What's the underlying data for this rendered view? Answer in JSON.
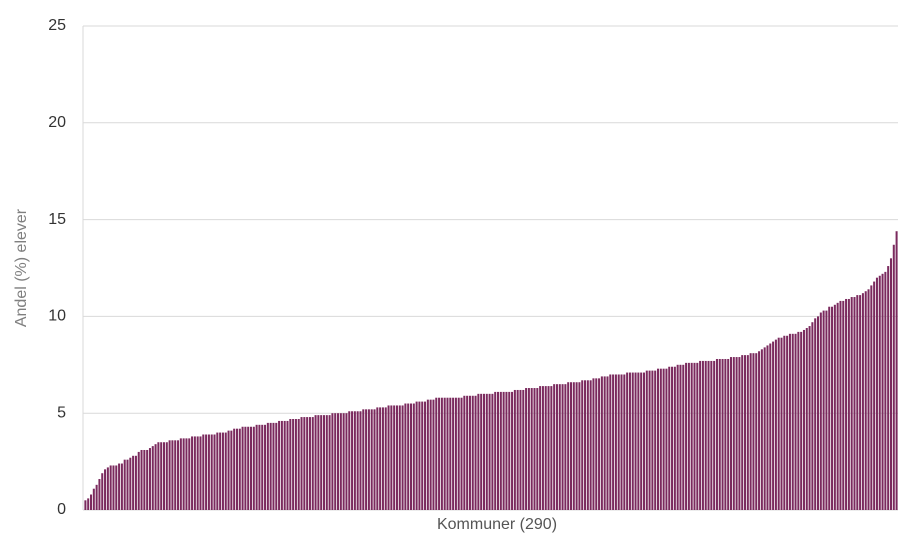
{
  "chart_data": {
    "type": "bar",
    "xlabel": "Kommuner (290)",
    "ylabel": "Andel (%) elever",
    "color": "#7b2a5e",
    "grid": true,
    "ylim": [
      0,
      25
    ],
    "yticks": [
      0,
      5,
      10,
      15,
      20,
      25
    ],
    "categories": [
      null,
      null,
      null,
      null,
      null,
      null,
      null,
      null,
      null,
      null,
      null,
      null,
      null,
      null,
      null,
      null,
      null,
      null,
      null,
      null,
      null,
      null,
      null,
      null,
      null,
      null,
      null,
      null,
      null,
      null,
      null,
      null,
      null,
      null,
      null,
      null,
      null,
      null,
      null,
      null,
      null,
      null,
      null,
      null,
      null,
      null,
      null,
      null,
      null,
      null,
      null,
      null,
      null,
      null,
      null,
      null,
      null,
      null,
      null,
      null,
      null,
      null,
      null,
      null,
      null,
      null,
      null,
      null,
      null,
      null,
      null,
      null,
      null,
      null,
      null,
      null,
      null,
      null,
      null,
      null,
      null,
      null,
      null,
      null,
      null,
      null,
      null,
      null,
      null,
      null,
      null,
      null,
      null,
      null,
      null,
      null,
      null,
      null,
      null,
      null,
      null,
      null,
      null,
      null,
      null,
      null,
      null,
      null,
      null,
      null,
      null,
      null,
      null,
      null,
      null,
      null,
      null,
      null,
      null,
      null,
      null,
      null,
      null,
      null,
      null,
      null,
      null,
      null,
      null,
      null,
      null,
      null,
      null,
      null,
      null,
      null,
      null,
      null,
      null,
      null,
      null,
      null,
      null,
      null,
      null,
      null,
      null,
      null,
      null,
      null,
      null,
      null,
      null,
      null,
      null,
      null,
      null,
      null,
      null,
      null,
      null,
      null,
      null,
      null,
      null,
      null,
      null,
      null,
      null,
      null,
      null,
      null,
      null,
      null,
      null,
      null,
      null,
      null,
      null,
      null,
      null,
      null,
      null,
      null,
      null,
      null,
      null,
      null,
      null,
      null,
      null,
      null,
      null,
      null,
      null,
      null,
      null,
      null,
      null,
      null,
      null,
      null,
      null,
      null,
      null,
      null,
      null,
      null,
      null,
      null,
      null,
      null,
      null,
      null,
      null,
      null,
      null,
      null,
      null,
      null,
      null,
      null,
      null,
      null,
      null,
      null,
      null,
      null,
      null,
      null,
      null,
      null,
      null,
      null,
      null,
      null,
      null,
      null,
      null,
      null,
      null,
      null,
      null,
      null,
      null,
      null,
      null,
      null,
      null,
      null,
      null,
      null,
      null,
      null,
      null,
      null,
      null,
      null,
      null,
      null,
      null,
      null,
      null,
      null,
      null,
      null,
      null,
      null,
      null,
      null,
      null,
      null,
      null,
      null,
      null,
      null,
      null,
      null,
      null,
      null,
      null,
      null,
      null,
      null,
      null,
      null,
      null,
      null,
      null,
      null
    ],
    "values": [
      0.5,
      0.6,
      0.8,
      1.1,
      1.3,
      1.6,
      1.9,
      2.1,
      2.2,
      2.3,
      2.3,
      2.3,
      2.4,
      2.4,
      2.6,
      2.6,
      2.7,
      2.8,
      2.8,
      3.0,
      3.1,
      3.1,
      3.1,
      3.2,
      3.3,
      3.4,
      3.5,
      3.5,
      3.5,
      3.5,
      3.6,
      3.6,
      3.6,
      3.6,
      3.7,
      3.7,
      3.7,
      3.7,
      3.8,
      3.8,
      3.8,
      3.8,
      3.9,
      3.9,
      3.9,
      3.9,
      3.9,
      4.0,
      4.0,
      4.0,
      4.0,
      4.1,
      4.1,
      4.2,
      4.2,
      4.2,
      4.3,
      4.3,
      4.3,
      4.3,
      4.3,
      4.4,
      4.4,
      4.4,
      4.4,
      4.5,
      4.5,
      4.5,
      4.5,
      4.6,
      4.6,
      4.6,
      4.6,
      4.7,
      4.7,
      4.7,
      4.7,
      4.8,
      4.8,
      4.8,
      4.8,
      4.8,
      4.9,
      4.9,
      4.9,
      4.9,
      4.9,
      4.9,
      5.0,
      5.0,
      5.0,
      5.0,
      5.0,
      5.0,
      5.1,
      5.1,
      5.1,
      5.1,
      5.1,
      5.2,
      5.2,
      5.2,
      5.2,
      5.2,
      5.3,
      5.3,
      5.3,
      5.3,
      5.4,
      5.4,
      5.4,
      5.4,
      5.4,
      5.4,
      5.5,
      5.5,
      5.5,
      5.5,
      5.6,
      5.6,
      5.6,
      5.6,
      5.7,
      5.7,
      5.7,
      5.8,
      5.8,
      5.8,
      5.8,
      5.8,
      5.8,
      5.8,
      5.8,
      5.8,
      5.8,
      5.9,
      5.9,
      5.9,
      5.9,
      5.9,
      6.0,
      6.0,
      6.0,
      6.0,
      6.0,
      6.0,
      6.1,
      6.1,
      6.1,
      6.1,
      6.1,
      6.1,
      6.1,
      6.2,
      6.2,
      6.2,
      6.2,
      6.3,
      6.3,
      6.3,
      6.3,
      6.3,
      6.4,
      6.4,
      6.4,
      6.4,
      6.4,
      6.5,
      6.5,
      6.5,
      6.5,
      6.5,
      6.6,
      6.6,
      6.6,
      6.6,
      6.6,
      6.7,
      6.7,
      6.7,
      6.7,
      6.8,
      6.8,
      6.8,
      6.9,
      6.9,
      6.9,
      7.0,
      7.0,
      7.0,
      7.0,
      7.0,
      7.0,
      7.1,
      7.1,
      7.1,
      7.1,
      7.1,
      7.1,
      7.1,
      7.2,
      7.2,
      7.2,
      7.2,
      7.3,
      7.3,
      7.3,
      7.3,
      7.4,
      7.4,
      7.4,
      7.5,
      7.5,
      7.5,
      7.6,
      7.6,
      7.6,
      7.6,
      7.6,
      7.7,
      7.7,
      7.7,
      7.7,
      7.7,
      7.7,
      7.8,
      7.8,
      7.8,
      7.8,
      7.8,
      7.9,
      7.9,
      7.9,
      7.9,
      8.0,
      8.0,
      8.0,
      8.1,
      8.1,
      8.1,
      8.2,
      8.3,
      8.4,
      8.5,
      8.6,
      8.7,
      8.8,
      8.9,
      8.9,
      9.0,
      9.0,
      9.1,
      9.1,
      9.1,
      9.2,
      9.2,
      9.3,
      9.4,
      9.5,
      9.7,
      9.9,
      10.0,
      10.2,
      10.3,
      10.3,
      10.5,
      10.5,
      10.6,
      10.7,
      10.8,
      10.8,
      10.9,
      10.9,
      11.0,
      11.0,
      11.1,
      11.1,
      11.2,
      11.3,
      11.4,
      11.6,
      11.8,
      12.0,
      12.1,
      12.2,
      12.3,
      12.6,
      13.0,
      13.7,
      14.4
    ]
  }
}
